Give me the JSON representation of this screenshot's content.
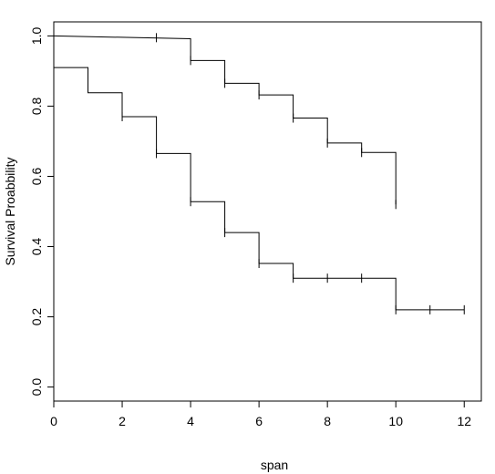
{
  "chart_data": {
    "type": "line",
    "xlabel": "span",
    "ylabel": "Survival Proabbility",
    "xlim": [
      0,
      12.5
    ],
    "ylim": [
      -0.04,
      1.04
    ],
    "grid": false,
    "x_ticks": [
      0,
      2,
      4,
      6,
      8,
      10,
      12
    ],
    "x_tick_labels": [
      "0",
      "2",
      "4",
      "6",
      "8",
      "10",
      "12"
    ],
    "y_ticks": [
      0.0,
      0.2,
      0.4,
      0.6,
      0.8,
      1.0
    ],
    "y_tick_labels": [
      "0.0",
      "0.2",
      "0.4",
      "0.6",
      "0.8",
      "1.0"
    ],
    "series": [
      {
        "steps": [
          [
            0,
            1.0
          ],
          [
            4,
            0.992
          ],
          [
            4,
            0.93
          ],
          [
            5,
            0.93
          ],
          [
            5,
            0.865
          ],
          [
            6,
            0.865
          ],
          [
            6,
            0.832
          ],
          [
            7,
            0.832
          ],
          [
            7,
            0.766
          ],
          [
            8,
            0.766
          ],
          [
            8,
            0.695
          ],
          [
            9,
            0.695
          ],
          [
            9,
            0.668
          ],
          [
            10,
            0.668
          ],
          [
            10,
            0.52
          ]
        ],
        "censored": [
          [
            3,
            0.995
          ],
          [
            4,
            0.93
          ],
          [
            5,
            0.865
          ],
          [
            6,
            0.832
          ],
          [
            7,
            0.766
          ],
          [
            8,
            0.695
          ],
          [
            9,
            0.668
          ],
          [
            10,
            0.52
          ]
        ]
      },
      {
        "steps": [
          [
            0,
            0.91
          ],
          [
            1,
            0.91
          ],
          [
            1,
            0.838
          ],
          [
            2,
            0.838
          ],
          [
            2,
            0.77
          ],
          [
            3,
            0.77
          ],
          [
            3,
            0.665
          ],
          [
            4,
            0.665
          ],
          [
            4,
            0.528
          ],
          [
            5,
            0.528
          ],
          [
            5,
            0.44
          ],
          [
            6,
            0.44
          ],
          [
            6,
            0.352
          ],
          [
            7,
            0.352
          ],
          [
            7,
            0.31
          ],
          [
            10,
            0.31
          ],
          [
            10,
            0.22
          ],
          [
            12,
            0.22
          ]
        ],
        "censored": [
          [
            2,
            0.77
          ],
          [
            3,
            0.665
          ],
          [
            4,
            0.528
          ],
          [
            5,
            0.44
          ],
          [
            6,
            0.352
          ],
          [
            7,
            0.31
          ],
          [
            8,
            0.31
          ],
          [
            9,
            0.31
          ],
          [
            10,
            0.22
          ],
          [
            11,
            0.22
          ],
          [
            12,
            0.22
          ]
        ]
      }
    ]
  }
}
